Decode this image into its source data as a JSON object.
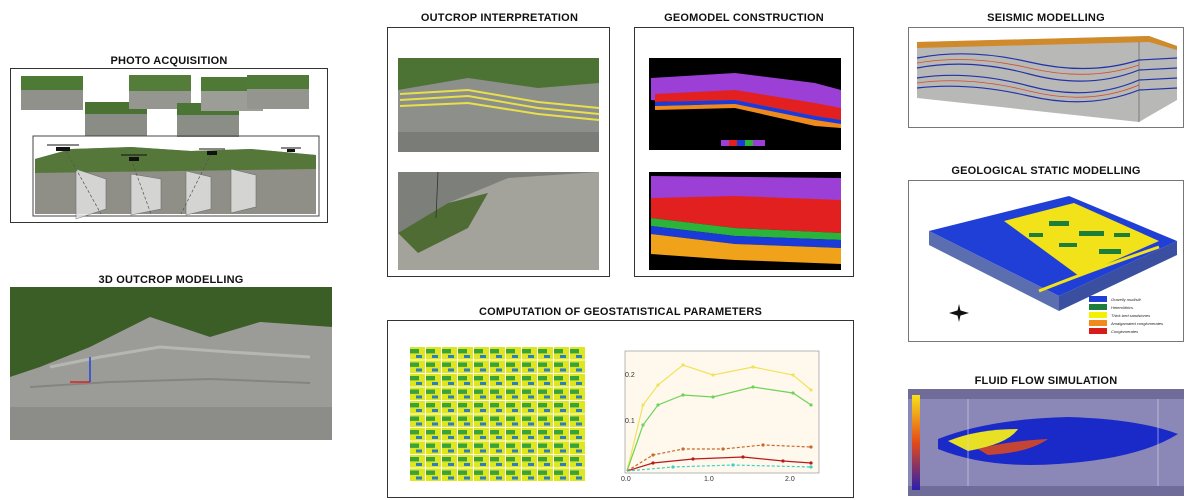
{
  "titles": {
    "photo_acquisition": "PHOTO ACQUISITION",
    "outcrop_modelling": "3D OUTCROP MODELLING",
    "outcrop_interpretation": "OUTCROP INTERPRETATION",
    "geomodel_construction": "GEOMODEL CONSTRUCTION",
    "geostatistical": "COMPUTATION OF GEOSTATISTICAL PARAMETERS",
    "seismic": "SEISMIC MODELLING",
    "static_modelling": "GEOLOGICAL STATIC MODELLING",
    "fluid_flow": "FLUID FLOW SIMULATION"
  },
  "variogram": {
    "ytick_top": "0.2",
    "ytick_mid": "0.1",
    "ytick_zero": "0.0",
    "xtick_0": "0.0",
    "xtick_1": "1.0",
    "xtick_2": "2.0",
    "ylabel": "γ"
  },
  "static_legend": [
    {
      "label": "Gravelly mud/silt",
      "color": "#1f3fd6"
    },
    {
      "label": "Heterolithics",
      "color": "#1d7d3a"
    },
    {
      "label": "Thick-bed sandstones",
      "color": "#f4f000"
    },
    {
      "label": "Amalgamated conglomerates",
      "color": "#f08a1a"
    },
    {
      "label": "Conglomerates",
      "color": "#d81b1b"
    }
  ],
  "colors": {
    "sky_rock": "#9a9a96",
    "vegetation": "#3f6b2a",
    "seismic_blue": "#2233aa",
    "reservoir_yellow": "#f1e21a"
  }
}
